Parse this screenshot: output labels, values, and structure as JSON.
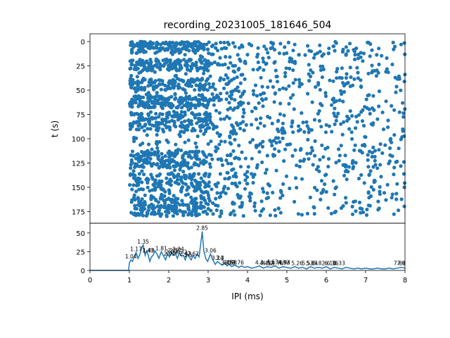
{
  "title": "recording_20231005_181646_504",
  "chart_data": [
    {
      "type": "scatter",
      "title": "recording_20231005_181646_504",
      "xlabel": "",
      "ylabel": "t (s)",
      "xlim": [
        0,
        8
      ],
      "ylim": [
        187,
        -8
      ],
      "y_inverted": true,
      "yticks": [
        "0",
        "25",
        "50",
        "75",
        "100",
        "125",
        "150",
        "175"
      ],
      "xticks": [],
      "color": "#1f77b4",
      "note_points": "Dense raster of IPI events: x in [1, 8] ms, y in [0, 180] s; densest for 1–3 ms.",
      "points": [
        [
          1.04,
          1
        ],
        [
          1.1,
          3
        ],
        [
          1.2,
          2
        ],
        [
          1.3,
          4
        ],
        [
          1.4,
          1
        ],
        [
          1.5,
          3
        ],
        [
          1.6,
          2
        ],
        [
          1.7,
          1
        ],
        [
          1.8,
          3
        ],
        [
          1.9,
          2
        ],
        [
          2.0,
          4
        ],
        [
          2.1,
          1
        ],
        [
          2.2,
          2
        ],
        [
          2.3,
          3
        ],
        [
          2.4,
          1
        ],
        [
          2.5,
          2
        ],
        [
          2.6,
          4
        ],
        [
          2.7,
          1
        ],
        [
          2.8,
          2
        ],
        [
          2.9,
          3
        ],
        [
          3.2,
          2
        ],
        [
          3.5,
          1
        ],
        [
          4.1,
          4
        ],
        [
          4.6,
          1
        ],
        [
          5.2,
          3
        ],
        [
          6.6,
          2
        ],
        [
          7.7,
          1
        ],
        [
          7.9,
          3
        ]
      ]
    },
    {
      "type": "line",
      "xlabel": "IPI (ms)",
      "ylabel": "",
      "xlim": [
        0,
        8
      ],
      "ylim": [
        0,
        63
      ],
      "xticks": [
        "0",
        "1",
        "2",
        "3",
        "4",
        "5",
        "6",
        "7",
        "8"
      ],
      "yticks": [
        "0",
        "25",
        "50"
      ],
      "color": "#1f77b4",
      "x": [
        0,
        0.98,
        1.0,
        1.04,
        1.08,
        1.12,
        1.17,
        1.22,
        1.27,
        1.31,
        1.35,
        1.4,
        1.44,
        1.47,
        1.52,
        1.56,
        1.6,
        1.65,
        1.7,
        1.75,
        1.81,
        1.86,
        1.92,
        1.97,
        2.02,
        2.07,
        2.12,
        2.17,
        2.22,
        2.27,
        2.32,
        2.37,
        2.42,
        2.47,
        2.52,
        2.57,
        2.62,
        2.67,
        2.72,
        2.77,
        2.81,
        2.85,
        2.89,
        2.94,
        2.99,
        3.06,
        3.12,
        3.18,
        3.24,
        3.3,
        3.36,
        3.42,
        3.48,
        3.54,
        3.6,
        3.66,
        3.72,
        3.78,
        3.85,
        3.92,
        4.0,
        4.1,
        4.2,
        4.3,
        4.4,
        4.5,
        4.6,
        4.7,
        4.8,
        4.9,
        5.0,
        5.1,
        5.2,
        5.3,
        5.4,
        5.5,
        5.6,
        5.7,
        5.8,
        5.9,
        6.0,
        6.1,
        6.2,
        6.3,
        6.4,
        6.5,
        6.6,
        6.7,
        6.8,
        6.9,
        7.0,
        7.1,
        7.2,
        7.3,
        7.4,
        7.5,
        7.6,
        7.7,
        7.8,
        7.9,
        8.0
      ],
      "y": [
        0,
        0,
        10,
        14,
        12,
        18,
        24,
        16,
        22,
        30,
        34,
        20,
        26,
        22,
        12,
        18,
        20,
        26,
        22,
        16,
        25,
        20,
        14,
        22,
        18,
        24,
        20,
        22,
        16,
        24,
        19,
        20,
        14,
        22,
        18,
        14,
        20,
        16,
        22,
        18,
        35,
        52,
        26,
        16,
        12,
        22,
        14,
        8,
        12,
        9,
        7,
        10,
        6,
        8,
        5,
        7,
        6,
        4,
        6,
        4,
        5,
        3,
        4,
        6,
        3,
        5,
        4,
        6,
        3,
        5,
        4,
        3,
        5,
        3,
        4,
        2,
        5,
        3,
        4,
        3,
        5,
        2,
        4,
        3,
        2,
        4,
        3,
        2,
        3,
        2,
        3,
        2,
        2,
        3,
        2,
        2,
        3,
        2,
        3,
        4,
        3
      ],
      "annotations": [
        {
          "x": 1.04,
          "y": 14,
          "text": "1.04"
        },
        {
          "x": 1.17,
          "y": 24,
          "text": "1.17"
        },
        {
          "x": 1.35,
          "y": 34,
          "text": "1.35"
        },
        {
          "x": 1.47,
          "y": 22,
          "text": "1.47"
        },
        {
          "x": 1.49,
          "y": 22,
          "text": "1.49"
        },
        {
          "x": 1.81,
          "y": 25,
          "text": "1.81"
        },
        {
          "x": 2.02,
          "y": 18,
          "text": "2.02"
        },
        {
          "x": 2.07,
          "y": 20,
          "text": "2.07"
        },
        {
          "x": 2.12,
          "y": 22,
          "text": "2.12"
        },
        {
          "x": 2.17,
          "y": 22,
          "text": "2.17"
        },
        {
          "x": 2.24,
          "y": 24,
          "text": "2.24"
        },
        {
          "x": 2.32,
          "y": 20,
          "text": "2.32"
        },
        {
          "x": 2.42,
          "y": 18,
          "text": "2.42"
        },
        {
          "x": 2.5,
          "y": 16,
          "text": "2.5"
        },
        {
          "x": 2.62,
          "y": 18,
          "text": "2.62"
        },
        {
          "x": 2.85,
          "y": 52,
          "text": "2.85"
        },
        {
          "x": 3.06,
          "y": 22,
          "text": "3.06"
        },
        {
          "x": 3.24,
          "y": 12,
          "text": "3.24"
        },
        {
          "x": 3.3,
          "y": 12,
          "text": "3.3"
        },
        {
          "x": 3.48,
          "y": 6,
          "text": "3.48"
        },
        {
          "x": 3.53,
          "y": 6,
          "text": "3.53"
        },
        {
          "x": 3.58,
          "y": 6,
          "text": "3.58"
        },
        {
          "x": 3.76,
          "y": 6,
          "text": "3.76"
        },
        {
          "x": 4.3,
          "y": 6,
          "text": "4.3"
        },
        {
          "x": 4.46,
          "y": 5,
          "text": "4.46"
        },
        {
          "x": 4.52,
          "y": 5,
          "text": "4.52"
        },
        {
          "x": 4.63,
          "y": 7,
          "text": "4.63"
        },
        {
          "x": 4.76,
          "y": 5,
          "text": "4.76"
        },
        {
          "x": 4.92,
          "y": 6,
          "text": "4.92"
        },
        {
          "x": 4.94,
          "y": 6,
          "text": "4.94"
        },
        {
          "x": 5.26,
          "y": 5,
          "text": "5.26"
        },
        {
          "x": 5.53,
          "y": 5,
          "text": "5.53"
        },
        {
          "x": 5.64,
          "y": 5,
          "text": "5.64"
        },
        {
          "x": 5.82,
          "y": 5,
          "text": "5.82"
        },
        {
          "x": 6.1,
          "y": 5,
          "text": "6.10"
        },
        {
          "x": 6.16,
          "y": 5,
          "text": "6.16"
        },
        {
          "x": 6.33,
          "y": 5,
          "text": "6.33"
        },
        {
          "x": 7.86,
          "y": 5,
          "text": "7.86"
        },
        {
          "x": 7.9,
          "y": 5,
          "text": "7.9"
        }
      ]
    }
  ]
}
